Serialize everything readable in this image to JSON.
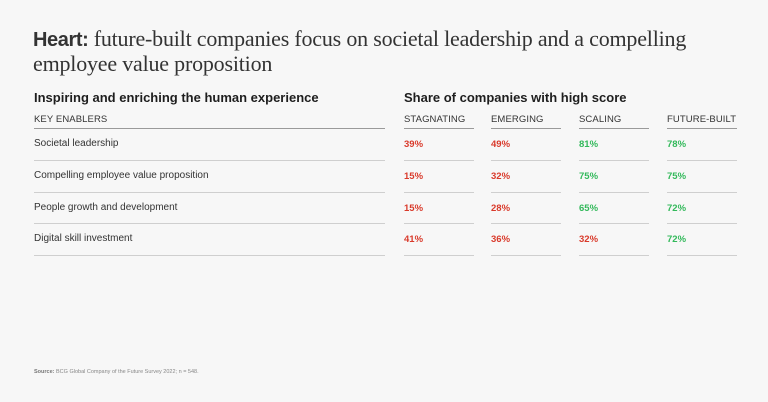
{
  "title": {
    "bold": "Heart:",
    "text": " future-built companies focus on societal leadership and a compelling employee value proposition"
  },
  "left_heading": "Inspiring and enriching the human experience",
  "right_heading": "Share of companies with high score",
  "colors": {
    "low": "#d93a2b",
    "high": "#33b95b"
  },
  "chart_data": {
    "type": "table",
    "title": "Heart: future-built companies focus on societal leadership and a compelling employee value proposition",
    "row_header": "KEY ENABLERS",
    "columns": [
      "STAGNATING",
      "EMERGING",
      "SCALING",
      "FUTURE-BUILT"
    ],
    "rows": [
      {
        "label": "Societal leadership",
        "values": [
          "39%",
          "49%",
          "81%",
          "78%"
        ],
        "status": [
          "low",
          "low",
          "high",
          "high"
        ]
      },
      {
        "label": "Compelling employee value proposition",
        "values": [
          "15%",
          "32%",
          "75%",
          "75%"
        ],
        "status": [
          "low",
          "low",
          "high",
          "high"
        ]
      },
      {
        "label": "People growth and development",
        "values": [
          "15%",
          "28%",
          "65%",
          "72%"
        ],
        "status": [
          "low",
          "low",
          "high",
          "high"
        ]
      },
      {
        "label": "Digital skill investment",
        "values": [
          "41%",
          "36%",
          "32%",
          "72%"
        ],
        "status": [
          "low",
          "low",
          "low",
          "high"
        ]
      }
    ]
  },
  "source": {
    "label": "Source:",
    "text": " BCG Global Company of the Future Survey 2022; n = 548."
  }
}
